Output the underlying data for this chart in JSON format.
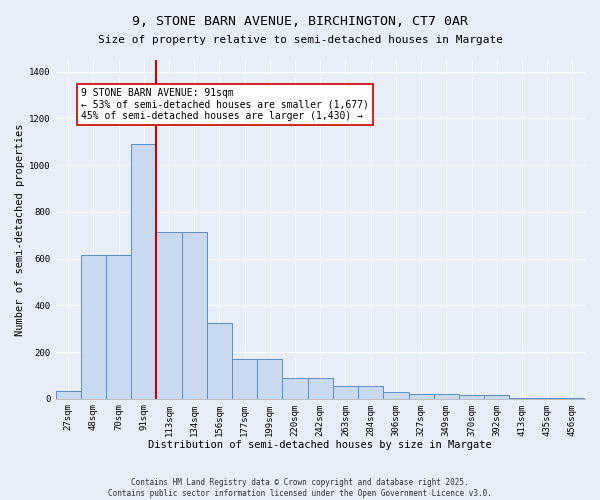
{
  "title_line1": "9, STONE BARN AVENUE, BIRCHINGTON, CT7 0AR",
  "title_line2": "Size of property relative to semi-detached houses in Margate",
  "xlabel": "Distribution of semi-detached houses by size in Margate",
  "ylabel": "Number of semi-detached properties",
  "bin_labels": [
    "27sqm",
    "48sqm",
    "70sqm",
    "91sqm",
    "113sqm",
    "134sqm",
    "156sqm",
    "177sqm",
    "199sqm",
    "220sqm",
    "242sqm",
    "263sqm",
    "284sqm",
    "306sqm",
    "327sqm",
    "349sqm",
    "370sqm",
    "392sqm",
    "413sqm",
    "435sqm",
    "456sqm"
  ],
  "bar_values": [
    35,
    615,
    615,
    1090,
    715,
    715,
    325,
    170,
    170,
    90,
    90,
    55,
    55,
    30,
    20,
    20,
    15,
    15,
    2,
    2,
    2
  ],
  "bar_color": "#c9d9f0",
  "bar_edge_color": "#5b8ec4",
  "red_line_index": 3,
  "red_line_color": "#cc0000",
  "annotation_text": "9 STONE BARN AVENUE: 91sqm\n← 53% of semi-detached houses are smaller (1,677)\n45% of semi-detached houses are larger (1,430) →",
  "annotation_box_color": "white",
  "annotation_box_edge": "#cc0000",
  "ylim": [
    0,
    1450
  ],
  "yticks": [
    0,
    200,
    400,
    600,
    800,
    1000,
    1200,
    1400
  ],
  "footer_line1": "Contains HM Land Registry data © Crown copyright and database right 2025.",
  "footer_line2": "Contains public sector information licensed under the Open Government Licence v3.0.",
  "bg_color": "#e8eef8",
  "plot_bg_color": "#e8eef8",
  "grid_color": "white",
  "title_fontsize": 9.5,
  "subtitle_fontsize": 8.0,
  "axis_label_fontsize": 7.5,
  "tick_fontsize": 6.5,
  "annotation_fontsize": 7.0,
  "footer_fontsize": 5.5
}
